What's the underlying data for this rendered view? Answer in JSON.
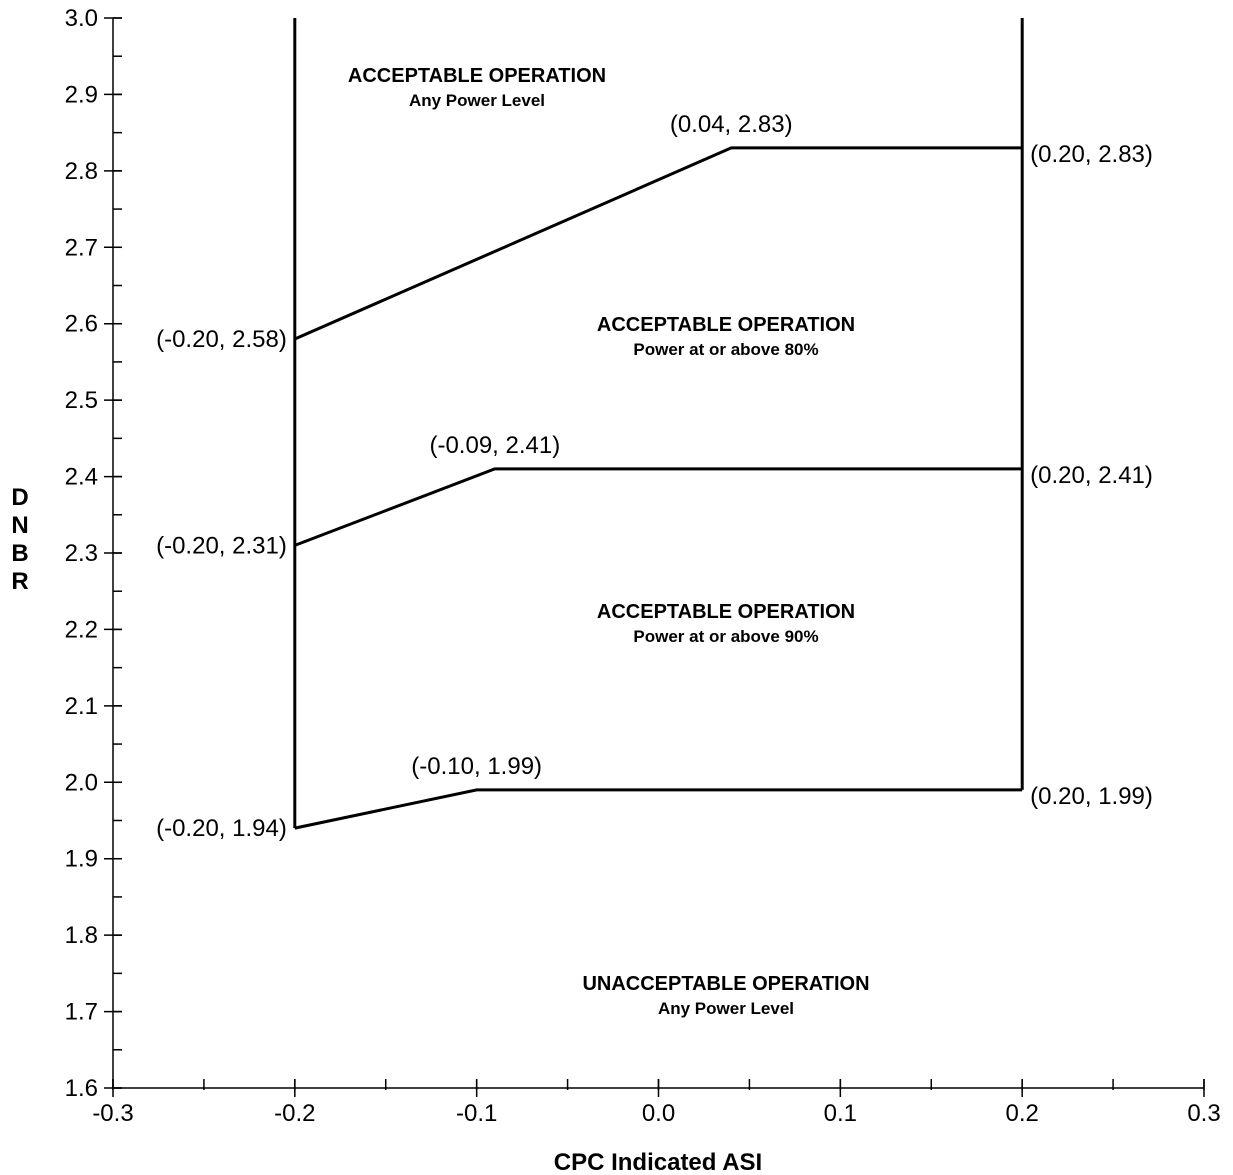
{
  "chart_data": {
    "type": "line",
    "title": "",
    "xlabel": "CPC Indicated ASI",
    "ylabel": "DNBR",
    "xlim": [
      -0.3,
      0.3
    ],
    "ylim": [
      1.6,
      3.0
    ],
    "x_major_ticks": [
      -0.3,
      -0.2,
      -0.1,
      0.0,
      0.1,
      0.2,
      0.3
    ],
    "x_tick_labels": [
      "-0.3",
      "-0.2",
      "-0.1",
      "0.0",
      "0.1",
      "0.2",
      "0.3"
    ],
    "x_minor_step": 0.05,
    "y_major_ticks": [
      1.6,
      1.7,
      1.8,
      1.9,
      2.0,
      2.1,
      2.2,
      2.3,
      2.4,
      2.5,
      2.6,
      2.7,
      2.8,
      2.9,
      3.0
    ],
    "y_tick_labels": [
      "1.6",
      "1.7",
      "1.8",
      "1.9",
      "2.0",
      "2.1",
      "2.2",
      "2.3",
      "2.4",
      "2.5",
      "2.6",
      "2.7",
      "2.8",
      "2.9",
      "3.0"
    ],
    "y_minor_step": 0.05,
    "grid": false,
    "series": [
      {
        "points": [
          [
            -0.2,
            2.58
          ],
          [
            0.04,
            2.83
          ],
          [
            0.2,
            2.83
          ]
        ]
      },
      {
        "points": [
          [
            -0.2,
            2.31
          ],
          [
            -0.09,
            2.41
          ],
          [
            0.2,
            2.41
          ]
        ]
      },
      {
        "points": [
          [
            -0.2,
            1.94
          ],
          [
            -0.1,
            1.99
          ],
          [
            0.2,
            1.99
          ]
        ]
      },
      {
        "points": [
          [
            -0.2,
            1.94
          ],
          [
            -0.2,
            3.0
          ]
        ]
      },
      {
        "points": [
          [
            0.2,
            1.99
          ],
          [
            0.2,
            3.0
          ]
        ]
      }
    ],
    "point_labels": [
      {
        "text": "(0.04, 2.83)",
        "x": 0.04,
        "y": 2.83
      },
      {
        "text": "(0.20, 2.83)",
        "x": 0.2,
        "y": 2.83
      },
      {
        "text": "(-0.20, 2.58)",
        "x": -0.2,
        "y": 2.58
      },
      {
        "text": "(-0.09, 2.41)",
        "x": -0.09,
        "y": 2.41
      },
      {
        "text": "(0.20, 2.41)",
        "x": 0.2,
        "y": 2.41
      },
      {
        "text": "(-0.20, 2.31)",
        "x": -0.2,
        "y": 2.31
      },
      {
        "text": "(-0.10, 1.99)",
        "x": -0.1,
        "y": 1.99
      },
      {
        "text": "(0.20, 1.99)",
        "x": 0.2,
        "y": 1.99
      },
      {
        "text": "(-0.20, 1.94)",
        "x": -0.2,
        "y": 1.94
      }
    ],
    "annotations": [
      {
        "title": "ACCEPTABLE OPERATION",
        "subtitle": "Any Power Level"
      },
      {
        "title": "ACCEPTABLE OPERATION",
        "subtitle": "Power at or above 80%"
      },
      {
        "title": "ACCEPTABLE OPERATION",
        "subtitle": "Power at or above 90%"
      },
      {
        "title": "UNACCEPTABLE OPERATION",
        "subtitle": "Any Power Level"
      }
    ]
  }
}
